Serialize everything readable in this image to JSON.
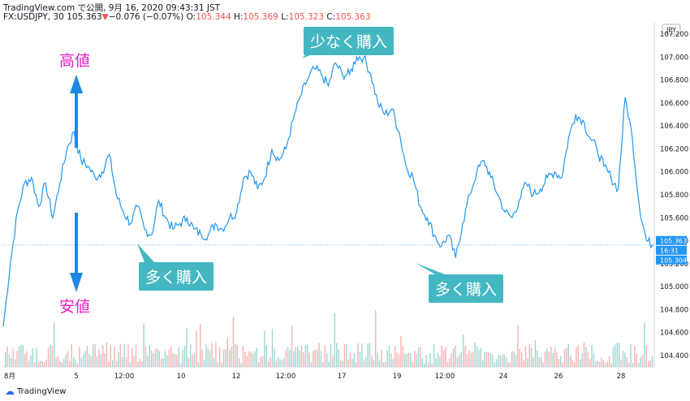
{
  "header": {
    "line1": "TradingView.com で公開, 9月 16, 2020 09:43:31 JST",
    "symbol": "FX:USDJPY, 30",
    "last": "105.363",
    "change": "−0.076 (−0.07%)",
    "o_label": "O:",
    "o_value": "105.344",
    "h_label": "H:",
    "h_value": "105.369",
    "l_label": "L:",
    "l_value": "105.323",
    "c_label": "C:",
    "c_value": "105.363"
  },
  "currency": "JPY",
  "footer": {
    "brand": "TradingView"
  },
  "colors": {
    "line": "#2196f3",
    "callout": "#44b7c2",
    "annotation_text": "#e91ec9",
    "arrow": "#1f88e5",
    "vol_up": "#26a69a",
    "vol_down": "#ef5350"
  },
  "annotations": {
    "high": "高値",
    "low": "安値",
    "buy_few": "少なく購入",
    "buy_many_1": "多く購入",
    "buy_many_2": "多く購入"
  },
  "price_badges": {
    "current": "105.363",
    "countdown": "16:31",
    "low": "105.304"
  },
  "chart_data": {
    "type": "line",
    "y_ticks": [
      "107.200",
      "107.000",
      "106.800",
      "106.600",
      "106.400",
      "106.200",
      "106.000",
      "105.800",
      "105.600",
      "105.400",
      "105.200",
      "105.000",
      "104.800",
      "104.600",
      "104.400"
    ],
    "x_ticks": [
      "8月",
      "5",
      "12:00",
      "10",
      "12",
      "12:00",
      "17",
      "19",
      "12:00",
      "24",
      "26",
      "28"
    ],
    "ylim": [
      104.3,
      107.3
    ],
    "series": [
      {
        "values": [
          104.65,
          105.2,
          105.65,
          105.9,
          105.95,
          105.7,
          105.9,
          105.6,
          105.9,
          106.2,
          106.35,
          106.1,
          106.05,
          105.95,
          106.0,
          106.15,
          105.8,
          105.65,
          105.55,
          105.7,
          105.5,
          105.45,
          105.75,
          105.6,
          105.5,
          105.55,
          105.6,
          105.5,
          105.45,
          105.45,
          105.55,
          105.5,
          105.6,
          105.65,
          105.95,
          106.0,
          105.85,
          105.95,
          106.2,
          106.1,
          106.2,
          106.45,
          106.65,
          106.8,
          106.9,
          106.85,
          106.75,
          106.95,
          106.85,
          106.85,
          107.0,
          107.0,
          106.85,
          106.6,
          106.5,
          106.55,
          106.35,
          106.05,
          105.95,
          105.7,
          105.6,
          105.45,
          105.35,
          105.45,
          105.25,
          105.55,
          105.8,
          106.0,
          106.1,
          105.95,
          105.8,
          105.65,
          105.6,
          105.75,
          105.9,
          105.8,
          105.85,
          105.95,
          106.0,
          105.95,
          106.3,
          106.5,
          106.45,
          106.3,
          106.2,
          106.05,
          105.95,
          105.85,
          106.65,
          106.3,
          105.7,
          105.4,
          105.363
        ]
      }
    ]
  }
}
